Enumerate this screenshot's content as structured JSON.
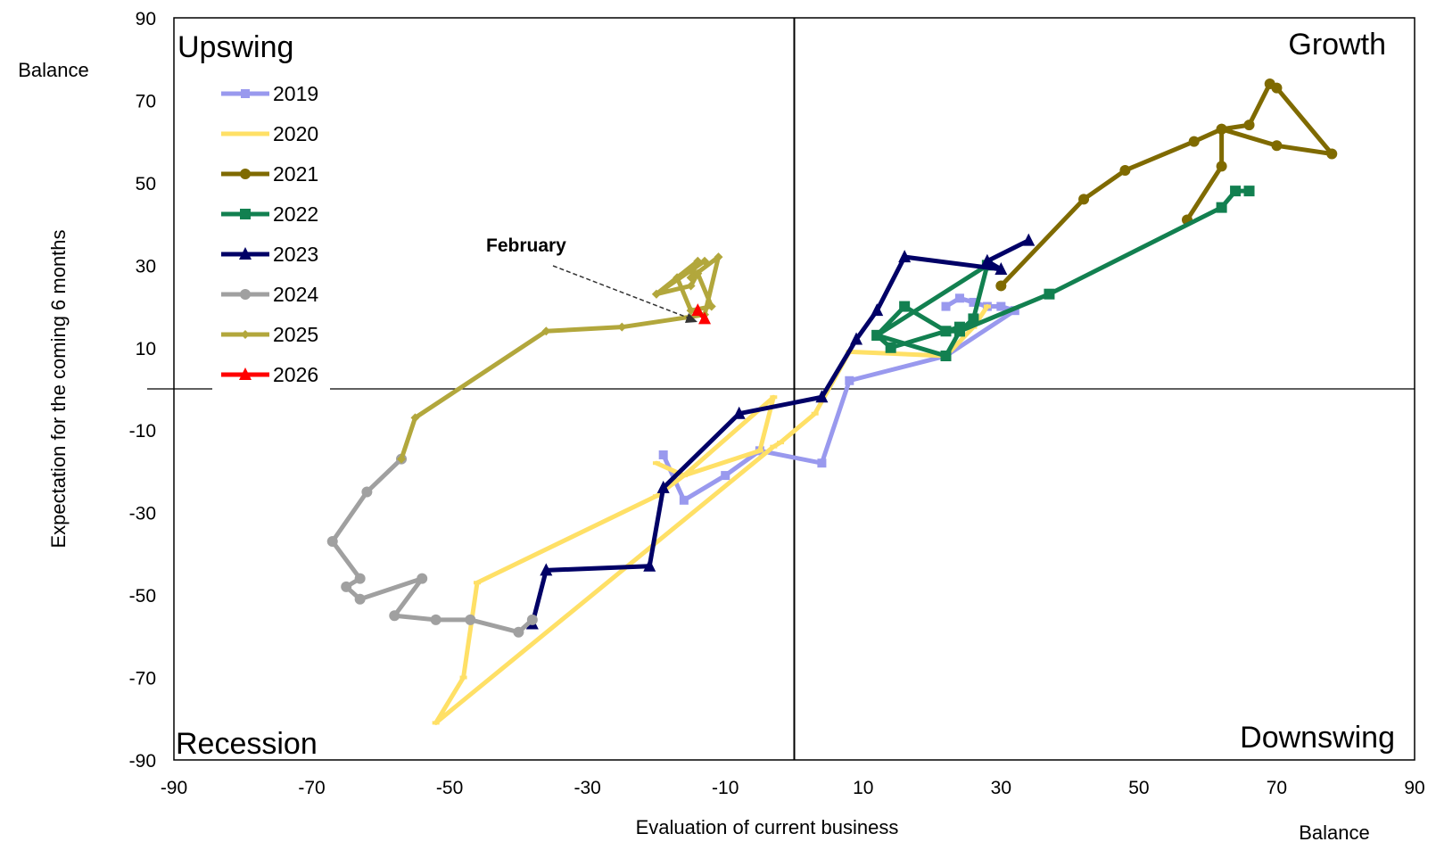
{
  "chart_data": {
    "type": "line",
    "x_axis": {
      "title": "Evaluation  of current business",
      "unit": "Balance",
      "min": -90,
      "max": 90,
      "ticks": [
        -90,
        -70,
        -50,
        -30,
        -10,
        10,
        30,
        50,
        70,
        90
      ]
    },
    "y_axis": {
      "title": "Expectation for the coming 6 months",
      "unit": "Balance",
      "min": -90,
      "max": 90,
      "ticks": [
        90,
        70,
        50,
        30,
        10,
        -10,
        -30,
        -50,
        -70,
        -90
      ]
    },
    "quadrants": {
      "top_left": "Upswing",
      "top_right": "Growth",
      "bottom_left": "Recession",
      "bottom_right": "Downswing"
    },
    "annotation": {
      "text": "February",
      "x": -15,
      "y": 17
    },
    "legend_position": "top-left",
    "series": [
      {
        "name": "2019",
        "color": "#9999ee",
        "marker": "bar",
        "points": [
          [
            22,
            20
          ],
          [
            24,
            22
          ],
          [
            26,
            21
          ],
          [
            28,
            20
          ],
          [
            30,
            20
          ],
          [
            32,
            19
          ],
          [
            22,
            8
          ],
          [
            8,
            2
          ],
          [
            4,
            -18
          ],
          [
            -5,
            -15
          ],
          [
            -10,
            -21
          ],
          [
            -16,
            -27
          ],
          [
            -19,
            -16
          ]
        ]
      },
      {
        "name": "2020",
        "color": "#ffe066",
        "marker": "dash",
        "points": [
          [
            -20,
            -18
          ],
          [
            -16,
            -21
          ],
          [
            -5,
            -15
          ],
          [
            -3,
            -2
          ],
          [
            -16,
            -21
          ],
          [
            -20,
            -26
          ],
          [
            -46,
            -47
          ],
          [
            -48,
            -70
          ],
          [
            -52,
            -81
          ],
          [
            -3,
            -14
          ],
          [
            -2,
            -13
          ],
          [
            3,
            -6
          ],
          [
            8,
            9
          ],
          [
            22,
            8
          ],
          [
            26,
            15
          ],
          [
            28,
            20
          ]
        ]
      },
      {
        "name": "2021",
        "color": "#7f6a00",
        "marker": "circle",
        "points": [
          [
            30,
            25
          ],
          [
            42,
            46
          ],
          [
            48,
            53
          ],
          [
            58,
            60
          ],
          [
            62,
            63
          ],
          [
            66,
            64
          ],
          [
            69,
            74
          ],
          [
            70,
            73
          ],
          [
            78,
            57
          ],
          [
            70,
            59
          ],
          [
            62,
            63
          ],
          [
            62,
            54
          ],
          [
            57,
            41
          ]
        ]
      },
      {
        "name": "2022",
        "color": "#128050",
        "marker": "square",
        "points": [
          [
            66,
            48
          ],
          [
            64,
            48
          ],
          [
            62,
            44
          ],
          [
            37,
            23
          ],
          [
            24,
            14
          ],
          [
            22,
            14
          ],
          [
            16,
            20
          ],
          [
            12,
            13
          ],
          [
            22,
            8
          ],
          [
            24,
            14
          ],
          [
            26,
            17
          ],
          [
            28,
            30
          ],
          [
            12,
            13
          ],
          [
            14,
            10
          ],
          [
            24,
            15
          ]
        ]
      },
      {
        "name": "2023",
        "color": "#000066",
        "marker": "triangle",
        "points": [
          [
            34,
            36
          ],
          [
            28,
            31
          ],
          [
            30,
            29
          ],
          [
            16,
            32
          ],
          [
            12,
            19
          ],
          [
            9,
            12
          ],
          [
            4,
            -2
          ],
          [
            -8,
            -6
          ],
          [
            -19,
            -24
          ],
          [
            -21,
            -43
          ],
          [
            -36,
            -44
          ],
          [
            -38,
            -57
          ]
        ]
      },
      {
        "name": "2024",
        "color": "#a0a0a0",
        "marker": "circle",
        "points": [
          [
            -38,
            -56
          ],
          [
            -40,
            -59
          ],
          [
            -47,
            -56
          ],
          [
            -52,
            -56
          ],
          [
            -58,
            -55
          ],
          [
            -54,
            -46
          ],
          [
            -63,
            -51
          ],
          [
            -65,
            -48
          ],
          [
            -63,
            -46
          ],
          [
            -67,
            -37
          ],
          [
            -62,
            -25
          ],
          [
            -57,
            -17
          ]
        ]
      },
      {
        "name": "2025",
        "color": "#b2a73c",
        "marker": "diamond",
        "points": [
          [
            -57,
            -17
          ],
          [
            -55,
            -7
          ],
          [
            -36,
            14
          ],
          [
            -25,
            15
          ],
          [
            -13,
            18
          ],
          [
            -11,
            32
          ],
          [
            -15,
            27
          ],
          [
            -14,
            31
          ],
          [
            -20,
            23
          ],
          [
            -15,
            25
          ],
          [
            -14,
            28
          ],
          [
            -12,
            20
          ],
          [
            -15,
            19
          ],
          [
            -17,
            27
          ],
          [
            -13,
            31
          ],
          [
            -20,
            23
          ]
        ]
      },
      {
        "name": "2026",
        "color": "#ff0000",
        "marker": "triangle",
        "points": [
          [
            -14,
            19
          ],
          [
            -13,
            17
          ]
        ]
      }
    ]
  }
}
